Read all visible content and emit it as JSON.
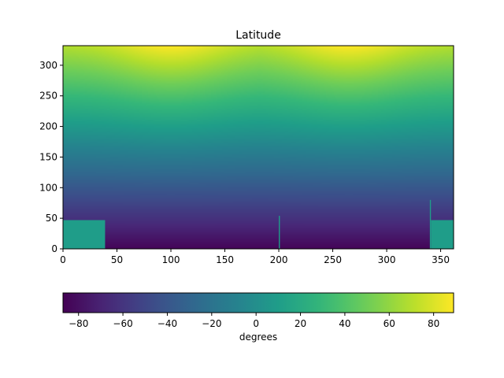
{
  "chart_data": {
    "type": "heatmap",
    "title": "Latitude",
    "xlabel": "",
    "ylabel": "",
    "xlim": [
      0,
      362
    ],
    "ylim": [
      0,
      332
    ],
    "xticks": [
      0,
      50,
      100,
      150,
      200,
      250,
      300,
      350
    ],
    "yticks": [
      0,
      50,
      100,
      150,
      200,
      250,
      300
    ],
    "value_description": "latitude of each grid cell in degrees; low near y=0, rising toward y=332, with two maxima along the top edge near x=100 and x=265",
    "value_range": [
      -85,
      89
    ],
    "peaks_along_top": [
      {
        "x": 100,
        "value": 89
      },
      {
        "x": 265,
        "value": 89
      }
    ],
    "fill_regions": [
      {
        "x": [
          0,
          39
        ],
        "y": [
          0,
          47
        ],
        "value": 10
      },
      {
        "x": [
          341,
          362
        ],
        "y": [
          0,
          47
        ],
        "value": 10
      },
      {
        "x": [
          200,
          201
        ],
        "y": [
          0,
          54
        ],
        "value": 10
      },
      {
        "x": [
          340,
          341
        ],
        "y": [
          0,
          80
        ],
        "value": 10
      }
    ],
    "colorbar": {
      "label": "degrees",
      "range": [
        -87,
        89
      ],
      "ticks": [
        -80,
        -60,
        -40,
        -20,
        0,
        20,
        40,
        60,
        80
      ],
      "colormap": "viridis",
      "orientation": "horizontal"
    }
  }
}
